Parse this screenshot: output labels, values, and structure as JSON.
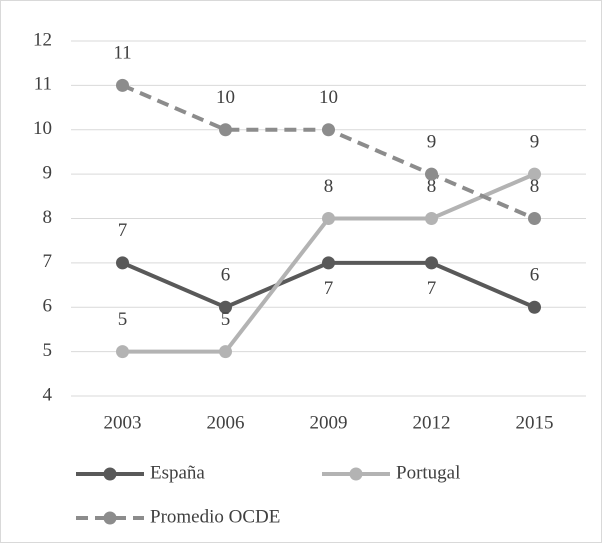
{
  "chart_data": {
    "type": "line",
    "categories": [
      "2003",
      "2006",
      "2009",
      "2012",
      "2015"
    ],
    "series": [
      {
        "name": "España",
        "color": "#595959",
        "values": [
          7,
          6,
          7,
          7,
          6
        ]
      },
      {
        "name": "Portugal",
        "color": "#b3b3b3",
        "values": [
          5,
          5,
          8,
          8,
          9
        ]
      },
      {
        "name": "Promedio OCDE",
        "color": "#8c8c8c",
        "dashed": true,
        "values": [
          11,
          10,
          10,
          9,
          8
        ]
      }
    ],
    "ylim": [
      4,
      12
    ],
    "yticks": [
      4,
      5,
      6,
      7,
      8,
      9,
      10,
      11,
      12
    ],
    "grid": true,
    "legend": "bottom",
    "data_labels": true
  }
}
